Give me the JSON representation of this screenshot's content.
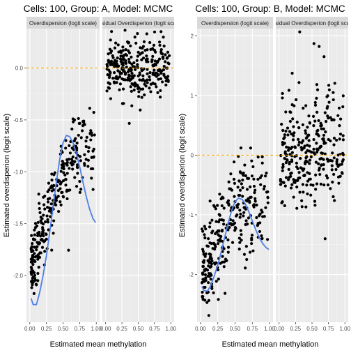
{
  "chart_data": [
    {
      "type": "scatter",
      "title": "Cells: 100, Group: A, Model: MCMC",
      "xlabel": "Estimated mean methylation",
      "ylabel": "Estimated overdisperion (logit scale)",
      "xlim": [
        -0.05,
        1.05
      ],
      "ylim": [
        -2.45,
        0.38
      ],
      "xticks": [
        0.0,
        0.25,
        0.5,
        0.75,
        1.0
      ],
      "xtick_labels": [
        "0.00",
        "0.25",
        "0.50",
        "0.75",
        "1.00"
      ],
      "yticks": [
        -2.0,
        -1.5,
        -1.0,
        -0.5,
        0.0
      ],
      "ytick_labels": [
        "-2.0",
        "-1.5",
        "-1.0",
        "-0.5",
        "0.0"
      ],
      "grid": true,
      "reference_line": {
        "y": 0,
        "color": "#FFA500",
        "style": "dashed"
      },
      "point_color": "#000000",
      "curve_color": "#4D7FE8",
      "panels": [
        {
          "strip": "Overdispersion (logit scale)",
          "kind": "trend",
          "trend": {
            "x": [
              0.02,
              0.05,
              0.1,
              0.15,
              0.2,
              0.25,
              0.3,
              0.35,
              0.4,
              0.45,
              0.5,
              0.55,
              0.6,
              0.65,
              0.7,
              0.75,
              0.8,
              0.85,
              0.9,
              0.95,
              0.99
            ],
            "y": [
              -2.22,
              -2.28,
              -2.28,
              -2.16,
              -2.0,
              -1.81,
              -1.58,
              -1.34,
              -1.1,
              -0.88,
              -0.72,
              -0.65,
              -0.66,
              -0.72,
              -0.82,
              -0.95,
              -1.1,
              -1.24,
              -1.36,
              -1.45,
              -1.49
            ]
          },
          "scatter": {
            "count": 300,
            "x_range": [
              0.02,
              0.98
            ],
            "curve": {
              "x": [
                0.02,
                0.1,
                0.2,
                0.3,
                0.4,
                0.5,
                0.6,
                0.7,
                0.8,
                0.9,
                0.98
              ],
              "y": [
                -1.92,
                -1.75,
                -1.55,
                -1.35,
                -1.15,
                -1.0,
                -0.9,
                -0.82,
                -0.82,
                -0.87,
                -0.9
              ]
            },
            "spread": 0.2
          }
        },
        {
          "strip": "Residual Overdisperion (logit scale)",
          "kind": "residual",
          "scatter": {
            "count": 300,
            "x_range": [
              0.02,
              0.98
            ],
            "curve": {
              "x": [
                0.02,
                0.5,
                0.98
              ],
              "y": [
                0.0,
                0.0,
                0.0
              ]
            },
            "spread": 0.14
          }
        }
      ]
    },
    {
      "type": "scatter",
      "title": "Cells: 100, Group: B, Model: MCMC",
      "xlabel": "Estimated mean methylation",
      "ylabel": "Estimated overdisperion (logit scale)",
      "xlim": [
        -0.05,
        1.05
      ],
      "ylim": [
        -2.8,
        2.12
      ],
      "xticks": [
        0.0,
        0.25,
        0.5,
        0.75,
        1.0
      ],
      "xtick_labels": [
        "0.00",
        "0.25",
        "0.50",
        "0.75",
        "1.00"
      ],
      "yticks": [
        -2,
        -1,
        0,
        1,
        2
      ],
      "ytick_labels": [
        "-2",
        "-1",
        "0",
        "1",
        "2"
      ],
      "grid": true,
      "reference_line": {
        "y": 0,
        "color": "#FFA500",
        "style": "dashed"
      },
      "point_color": "#000000",
      "curve_color": "#4D7FE8",
      "panels": [
        {
          "strip": "Overdispersion (logit scale)",
          "kind": "trend",
          "trend": {
            "x": [
              0.02,
              0.05,
              0.1,
              0.15,
              0.2,
              0.25,
              0.3,
              0.35,
              0.4,
              0.45,
              0.5,
              0.55,
              0.6,
              0.65,
              0.7,
              0.75,
              0.8,
              0.85,
              0.9,
              0.95,
              0.99
            ],
            "y": [
              -2.2,
              -2.27,
              -2.28,
              -2.18,
              -2.02,
              -1.84,
              -1.62,
              -1.38,
              -1.14,
              -0.93,
              -0.78,
              -0.72,
              -0.74,
              -0.82,
              -0.95,
              -1.1,
              -1.25,
              -1.38,
              -1.48,
              -1.55,
              -1.58
            ]
          },
          "scatter": {
            "count": 300,
            "x_range": [
              0.02,
              0.98
            ],
            "curve": {
              "x": [
                0.02,
                0.1,
                0.2,
                0.3,
                0.4,
                0.5,
                0.6,
                0.7,
                0.8,
                0.9,
                0.98
              ],
              "y": [
                -2.0,
                -1.8,
                -1.6,
                -1.35,
                -1.15,
                -0.95,
                -0.85,
                -0.78,
                -0.8,
                -0.85,
                -0.9
              ]
            },
            "spread": 0.38
          }
        },
        {
          "strip": "Residual Overdisperion (logit scale)",
          "kind": "residual",
          "scatter": {
            "count": 300,
            "x_range": [
              0.02,
              0.98
            ],
            "curve": {
              "x": [
                0.02,
                0.5,
                0.98
              ],
              "y": [
                0.0,
                0.05,
                0.1
              ]
            },
            "spread": 0.45
          }
        }
      ]
    }
  ]
}
